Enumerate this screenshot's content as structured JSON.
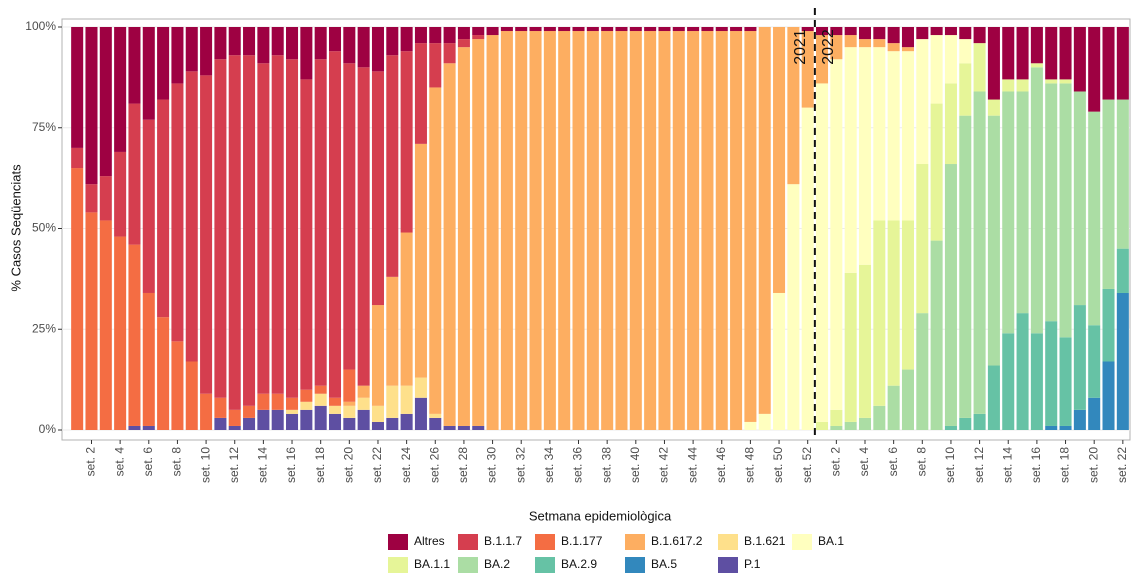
{
  "chart_data": {
    "type": "stacked_bar",
    "x_label": "Setmana epidemiològica",
    "y_label": "% Casos Seqüenciats",
    "annotations": [
      "2021",
      "2022"
    ],
    "legend_position": "bottom",
    "grid": true,
    "ylim": [
      0,
      100
    ],
    "yticks": [
      {
        "value": 0,
        "label": "0%"
      },
      {
        "value": 25,
        "label": "25%"
      },
      {
        "value": 50,
        "label": "50%"
      },
      {
        "value": 75,
        "label": "75%"
      },
      {
        "value": 100,
        "label": "100%"
      }
    ],
    "categories": [
      null,
      "set. 2",
      null,
      "set. 4",
      null,
      "set. 6",
      null,
      "set. 8",
      null,
      "set. 10",
      null,
      "set. 12",
      null,
      "set. 14",
      null,
      "set. 16",
      null,
      "set. 18",
      null,
      "set. 20",
      null,
      "set. 22",
      null,
      "set. 24",
      null,
      "set. 26",
      null,
      "set. 28",
      null,
      "set. 30",
      null,
      "set. 32",
      null,
      "set. 34",
      null,
      "set. 36",
      null,
      "set. 38",
      null,
      "set. 40",
      null,
      "set. 42",
      null,
      "set. 44",
      null,
      "set. 46",
      null,
      "set. 48",
      null,
      "set. 50",
      null,
      "set. 52",
      null,
      "set. 2",
      null,
      "set. 4",
      null,
      "set. 6",
      null,
      "set. 8",
      null,
      "set. 10",
      null,
      "set. 12",
      null,
      "set. 14",
      null,
      "set. 16",
      null,
      "set. 18",
      null,
      "set. 20",
      null,
      "set. 22"
    ],
    "series": [
      {
        "name": "Altres",
        "color": "#9e0142",
        "values": [
          30,
          39,
          37,
          31,
          19,
          23,
          18,
          14,
          11,
          12,
          8,
          7,
          7,
          9,
          7,
          8,
          13,
          8,
          6,
          9,
          10,
          11,
          7,
          6,
          4,
          4,
          4,
          3,
          2,
          2,
          1,
          1,
          1,
          1,
          1,
          1,
          1,
          1,
          1,
          1,
          1,
          1,
          1,
          1,
          1,
          1,
          1,
          1,
          0,
          0,
          0,
          1,
          2,
          2,
          2,
          3,
          3,
          4,
          5,
          3,
          2,
          2,
          3,
          4,
          18,
          13,
          13,
          9,
          13,
          13,
          16,
          21,
          18,
          18
        ]
      },
      {
        "name": "B.1.1.7",
        "color": "#d53e4f",
        "values": [
          5,
          7,
          11,
          21,
          35,
          43,
          54,
          64,
          72,
          79,
          84,
          88,
          87,
          82,
          84,
          84,
          77,
          81,
          86,
          76,
          79,
          58,
          55,
          45,
          25,
          11,
          5,
          2,
          1,
          0,
          0,
          0,
          0,
          0,
          0,
          0,
          0,
          0,
          0,
          0,
          0,
          0,
          0,
          0,
          0,
          0,
          0,
          0,
          0,
          0,
          0,
          0,
          0,
          0,
          0,
          0,
          0,
          0,
          0,
          0,
          0,
          0,
          0,
          0,
          0,
          0,
          0,
          0,
          0,
          0,
          0,
          0,
          0,
          0
        ]
      },
      {
        "name": "B.1.177",
        "color": "#f46d43",
        "values": [
          65,
          54,
          52,
          48,
          45,
          33,
          28,
          22,
          17,
          9,
          5,
          4,
          3,
          4,
          4,
          3,
          3,
          2,
          2,
          8,
          0,
          0,
          0,
          0,
          0,
          0,
          0,
          0,
          0,
          0,
          0,
          0,
          0,
          0,
          0,
          0,
          0,
          0,
          0,
          0,
          0,
          0,
          0,
          0,
          0,
          0,
          0,
          0,
          0,
          0,
          0,
          0,
          0,
          0,
          0,
          0,
          0,
          0,
          0,
          0,
          0,
          0,
          0,
          0,
          0,
          0,
          0,
          0,
          0,
          0,
          0,
          0,
          0,
          0
        ]
      },
      {
        "name": "B.1.617.2",
        "color": "#fdae61",
        "values": [
          0,
          0,
          0,
          0,
          0,
          0,
          0,
          0,
          0,
          0,
          0,
          0,
          0,
          0,
          0,
          0,
          0,
          0,
          0,
          1,
          3,
          25,
          27,
          38,
          58,
          81,
          90,
          94,
          96,
          98,
          99,
          99,
          99,
          99,
          99,
          99,
          99,
          99,
          99,
          99,
          99,
          99,
          99,
          99,
          99,
          99,
          99,
          97,
          96,
          66,
          39,
          19,
          12,
          6,
          3,
          2,
          2,
          2,
          1,
          0,
          0,
          0,
          0,
          0,
          0,
          0,
          0,
          0,
          0,
          0,
          0,
          0,
          0,
          0
        ]
      },
      {
        "name": "B.1.621",
        "color": "#fee08b",
        "values": [
          0,
          0,
          0,
          0,
          0,
          0,
          0,
          0,
          0,
          0,
          0,
          0,
          0,
          0,
          0,
          1,
          2,
          3,
          2,
          3,
          3,
          4,
          8,
          7,
          5,
          1,
          0,
          0,
          0,
          0,
          0,
          0,
          0,
          0,
          0,
          0,
          0,
          0,
          0,
          0,
          0,
          0,
          0,
          0,
          0,
          0,
          0,
          0,
          0,
          0,
          0,
          0,
          0,
          0,
          0,
          0,
          0,
          0,
          0,
          0,
          0,
          0,
          0,
          0,
          0,
          0,
          0,
          0,
          0,
          0,
          0,
          0,
          0,
          0
        ]
      },
      {
        "name": "BA.1",
        "color": "#ffffbf",
        "values": [
          0,
          0,
          0,
          0,
          0,
          0,
          0,
          0,
          0,
          0,
          0,
          0,
          0,
          0,
          0,
          0,
          0,
          0,
          0,
          0,
          0,
          0,
          0,
          0,
          0,
          0,
          0,
          0,
          0,
          0,
          0,
          0,
          0,
          0,
          0,
          0,
          0,
          0,
          0,
          0,
          0,
          0,
          0,
          0,
          0,
          0,
          0,
          2,
          4,
          34,
          61,
          80,
          84,
          87,
          56,
          54,
          43,
          42,
          42,
          31,
          17,
          12,
          6,
          0,
          0,
          0,
          0,
          0,
          0,
          0,
          0,
          0,
          0,
          0
        ]
      },
      {
        "name": "BA.1.1",
        "color": "#e6f598",
        "values": [
          0,
          0,
          0,
          0,
          0,
          0,
          0,
          0,
          0,
          0,
          0,
          0,
          0,
          0,
          0,
          0,
          0,
          0,
          0,
          0,
          0,
          0,
          0,
          0,
          0,
          0,
          0,
          0,
          0,
          0,
          0,
          0,
          0,
          0,
          0,
          0,
          0,
          0,
          0,
          0,
          0,
          0,
          0,
          0,
          0,
          0,
          0,
          0,
          0,
          0,
          0,
          0,
          2,
          4,
          37,
          38,
          46,
          41,
          37,
          37,
          34,
          20,
          13,
          12,
          4,
          3,
          3,
          1,
          1,
          1,
          0,
          0,
          0,
          0
        ]
      },
      {
        "name": "BA.2",
        "color": "#abdda4",
        "values": [
          0,
          0,
          0,
          0,
          0,
          0,
          0,
          0,
          0,
          0,
          0,
          0,
          0,
          0,
          0,
          0,
          0,
          0,
          0,
          0,
          0,
          0,
          0,
          0,
          0,
          0,
          0,
          0,
          0,
          0,
          0,
          0,
          0,
          0,
          0,
          0,
          0,
          0,
          0,
          0,
          0,
          0,
          0,
          0,
          0,
          0,
          0,
          0,
          0,
          0,
          0,
          0,
          0,
          1,
          2,
          3,
          6,
          11,
          15,
          29,
          47,
          65,
          75,
          80,
          62,
          60,
          55,
          66,
          59,
          63,
          53,
          53,
          47,
          37
        ]
      },
      {
        "name": "BA.2.9",
        "color": "#66c2a5",
        "values": [
          0,
          0,
          0,
          0,
          0,
          0,
          0,
          0,
          0,
          0,
          0,
          0,
          0,
          0,
          0,
          0,
          0,
          0,
          0,
          0,
          0,
          0,
          0,
          0,
          0,
          0,
          0,
          0,
          0,
          0,
          0,
          0,
          0,
          0,
          0,
          0,
          0,
          0,
          0,
          0,
          0,
          0,
          0,
          0,
          0,
          0,
          0,
          0,
          0,
          0,
          0,
          0,
          0,
          0,
          0,
          0,
          0,
          0,
          0,
          0,
          0,
          1,
          3,
          4,
          16,
          24,
          29,
          24,
          26,
          22,
          26,
          18,
          18,
          11
        ]
      },
      {
        "name": "BA.5",
        "color": "#3288bd",
        "values": [
          0,
          0,
          0,
          0,
          0,
          0,
          0,
          0,
          0,
          0,
          0,
          0,
          0,
          0,
          0,
          0,
          0,
          0,
          0,
          0,
          0,
          0,
          0,
          0,
          0,
          0,
          0,
          0,
          0,
          0,
          0,
          0,
          0,
          0,
          0,
          0,
          0,
          0,
          0,
          0,
          0,
          0,
          0,
          0,
          0,
          0,
          0,
          0,
          0,
          0,
          0,
          0,
          0,
          0,
          0,
          0,
          0,
          0,
          0,
          0,
          0,
          0,
          0,
          0,
          0,
          0,
          0,
          0,
          1,
          1,
          5,
          8,
          17,
          34
        ]
      },
      {
        "name": "P.1",
        "color": "#5e4fa2",
        "values": [
          0,
          0,
          0,
          0,
          1,
          1,
          0,
          0,
          0,
          0,
          3,
          1,
          3,
          5,
          5,
          4,
          5,
          6,
          4,
          3,
          5,
          2,
          3,
          4,
          8,
          3,
          1,
          1,
          1,
          0,
          0,
          0,
          0,
          0,
          0,
          0,
          0,
          0,
          0,
          0,
          0,
          0,
          0,
          0,
          0,
          0,
          0,
          0,
          0,
          0,
          0,
          0,
          0,
          0,
          0,
          0,
          0,
          0,
          0,
          0,
          0,
          0,
          0,
          0,
          0,
          0,
          0,
          0,
          0,
          0,
          0,
          0,
          0,
          0
        ]
      }
    ]
  }
}
